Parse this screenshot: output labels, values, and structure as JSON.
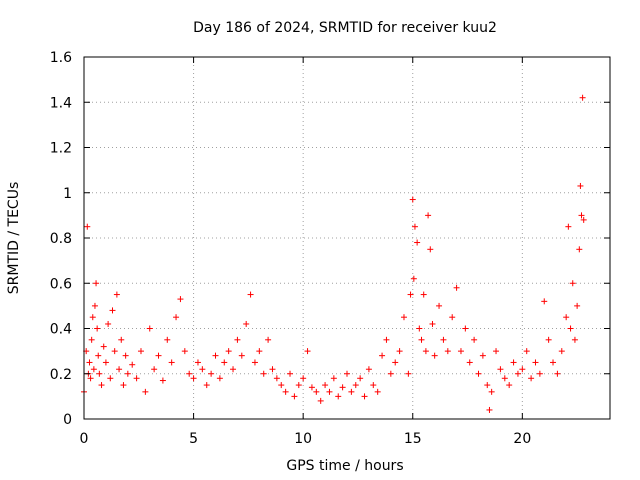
{
  "chart_data": {
    "type": "scatter",
    "title": "Day 186 of 2024, SRMTID for receiver kuu2",
    "xlabel": "GPS time / hours",
    "ylabel": "SRMTID / TECUs",
    "xlim": [
      0,
      24
    ],
    "ylim": [
      0,
      1.6
    ],
    "xticks": [
      0,
      5,
      10,
      15,
      20
    ],
    "xtick_labels": [
      "0",
      "5",
      "10",
      "15",
      "20"
    ],
    "yticks": [
      0,
      0.2,
      0.4,
      0.6,
      0.8,
      1.0,
      1.2,
      1.4,
      1.6
    ],
    "ytick_labels": [
      "0",
      "0.2",
      "0.4",
      "0.6",
      "0.8",
      "1",
      "1.2",
      "1.4",
      "1.6"
    ],
    "grid": true,
    "marker": "plus",
    "series": [
      {
        "name": "SRMTID",
        "color": "#ff0000",
        "x": [
          0.0,
          0.1,
          0.15,
          0.2,
          0.25,
          0.3,
          0.35,
          0.4,
          0.45,
          0.5,
          0.55,
          0.6,
          0.65,
          0.7,
          0.8,
          0.9,
          1.0,
          1.1,
          1.2,
          1.3,
          1.4,
          1.5,
          1.6,
          1.7,
          1.8,
          1.9,
          2.0,
          2.2,
          2.4,
          2.6,
          2.8,
          3.0,
          3.2,
          3.4,
          3.6,
          3.8,
          4.0,
          4.2,
          4.4,
          4.6,
          4.8,
          5.0,
          5.2,
          5.4,
          5.6,
          5.8,
          6.0,
          6.2,
          6.4,
          6.6,
          6.8,
          7.0,
          7.2,
          7.4,
          7.6,
          7.8,
          8.0,
          8.2,
          8.4,
          8.6,
          8.8,
          9.0,
          9.2,
          9.4,
          9.6,
          9.8,
          10.0,
          10.2,
          10.4,
          10.6,
          10.8,
          11.0,
          11.2,
          11.4,
          11.6,
          11.8,
          12.0,
          12.2,
          12.4,
          12.6,
          12.8,
          13.0,
          13.2,
          13.4,
          13.6,
          13.8,
          14.0,
          14.2,
          14.4,
          14.6,
          14.8,
          14.9,
          15.0,
          15.05,
          15.1,
          15.2,
          15.3,
          15.4,
          15.5,
          15.6,
          15.7,
          15.8,
          15.9,
          16.0,
          16.2,
          16.4,
          16.6,
          16.8,
          17.0,
          17.2,
          17.4,
          17.6,
          17.8,
          18.0,
          18.2,
          18.4,
          18.5,
          18.6,
          18.8,
          19.0,
          19.2,
          19.4,
          19.6,
          19.8,
          20.0,
          20.2,
          20.4,
          20.6,
          20.8,
          21.0,
          21.2,
          21.4,
          21.6,
          21.8,
          22.0,
          22.1,
          22.2,
          22.3,
          22.4,
          22.5,
          22.6,
          22.65,
          22.7,
          22.75,
          22.8
        ],
        "y": [
          0.12,
          0.3,
          0.85,
          0.2,
          0.25,
          0.18,
          0.35,
          0.45,
          0.22,
          0.5,
          0.6,
          0.4,
          0.28,
          0.2,
          0.15,
          0.32,
          0.25,
          0.42,
          0.18,
          0.48,
          0.3,
          0.55,
          0.22,
          0.35,
          0.15,
          0.28,
          0.2,
          0.24,
          0.18,
          0.3,
          0.12,
          0.4,
          0.22,
          0.28,
          0.17,
          0.35,
          0.25,
          0.45,
          0.53,
          0.3,
          0.2,
          0.18,
          0.25,
          0.22,
          0.15,
          0.2,
          0.28,
          0.18,
          0.25,
          0.3,
          0.22,
          0.35,
          0.28,
          0.42,
          0.55,
          0.25,
          0.3,
          0.2,
          0.35,
          0.22,
          0.18,
          0.15,
          0.12,
          0.2,
          0.1,
          0.15,
          0.18,
          0.3,
          0.14,
          0.12,
          0.08,
          0.15,
          0.12,
          0.18,
          0.1,
          0.14,
          0.2,
          0.12,
          0.15,
          0.18,
          0.1,
          0.22,
          0.15,
          0.12,
          0.28,
          0.35,
          0.2,
          0.25,
          0.3,
          0.45,
          0.2,
          0.55,
          0.97,
          0.62,
          0.85,
          0.78,
          0.4,
          0.35,
          0.55,
          0.3,
          0.9,
          0.75,
          0.42,
          0.28,
          0.5,
          0.35,
          0.3,
          0.45,
          0.58,
          0.3,
          0.4,
          0.25,
          0.35,
          0.2,
          0.28,
          0.15,
          0.04,
          0.12,
          0.3,
          0.22,
          0.18,
          0.15,
          0.25,
          0.2,
          0.22,
          0.3,
          0.18,
          0.25,
          0.2,
          0.52,
          0.35,
          0.25,
          0.2,
          0.3,
          0.45,
          0.85,
          0.4,
          0.6,
          0.35,
          0.5,
          0.75,
          1.03,
          0.9,
          1.42,
          0.88
        ]
      }
    ]
  }
}
